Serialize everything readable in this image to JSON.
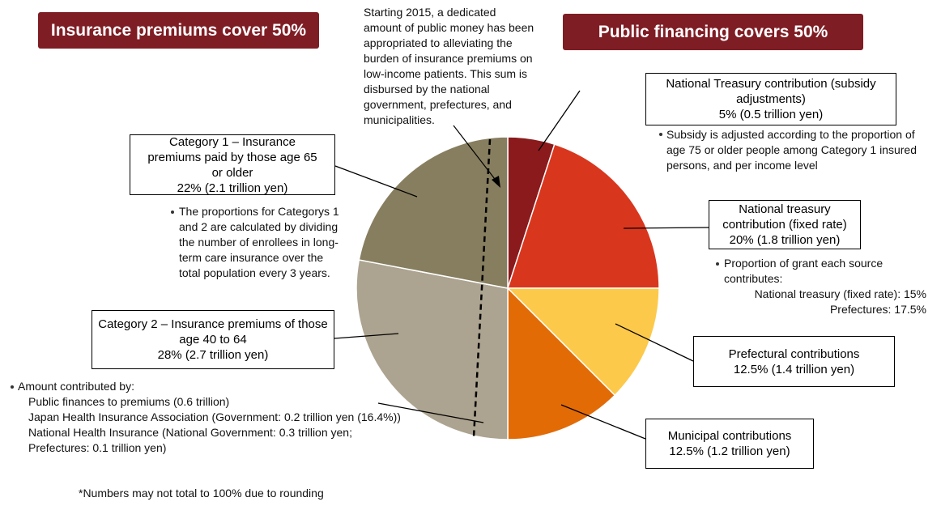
{
  "chart_data": {
    "type": "pie",
    "headers": [
      "Insurance premiums cover 50%",
      "Public financing covers 50%"
    ],
    "categories": [
      "National Treasury contribution (subsidy adjustments)",
      "National treasury contribution (fixed rate)",
      "Prefectural contributions",
      "Municipal contributions",
      "Category 2 – Insurance premiums of those age 40 to 64",
      "Category 1 – Insurance premiums paid by those age 65 or older"
    ],
    "values": [
      5,
      20,
      12.5,
      12.5,
      28,
      22
    ],
    "value_labels": [
      "5% (0.5 trillion yen)",
      "20% (1.8 trillion yen)",
      "12.5% (1.4 trillion yen)",
      "12.5% (1.2 trillion yen)",
      "28% (2.7 trillion yen)",
      "22% (2.1 trillion yen)"
    ],
    "colors": [
      "#8a1a1c",
      "#d9361e",
      "#fdc94a",
      "#e26b06",
      "#aca390",
      "#877e60"
    ],
    "notes": {
      "top": [
        "Starting 2015, a dedicated",
        "amount of public money has been",
        "appropriated to alleviating the",
        "burden of insurance premiums on",
        "low-income patients. This sum is",
        "disbursed by the national",
        "government, prefectures, and",
        "municipalities."
      ],
      "subsidy": [
        "Subsidy is adjusted according to the proportion of",
        "age 75 or older people among Category 1 insured",
        "persons, and per income level"
      ],
      "fixed": [
        "Proportion of grant each source",
        "contributes:",
        "National treasury (fixed rate): 15%",
        "Prefectures: 17.5%"
      ],
      "category1": [
        "The proportions for Categorys 1",
        "and 2 are calculated by dividing",
        "the number of enrollees in long-",
        "term care insurance over the",
        "total population every 3 years."
      ],
      "category2": [
        "Amount contributed by:",
        "Public finances to premiums (0.6 trillion)",
        "Japan Health Insurance Association (Government: 0.2 trillion yen (16.4%))",
        "National Health Insurance (National Government: 0.3 trillion yen;",
        "Prefectures: 0.1 trillion yen)"
      ]
    },
    "footnote": "*Numbers may not total to 100% due to rounding"
  }
}
